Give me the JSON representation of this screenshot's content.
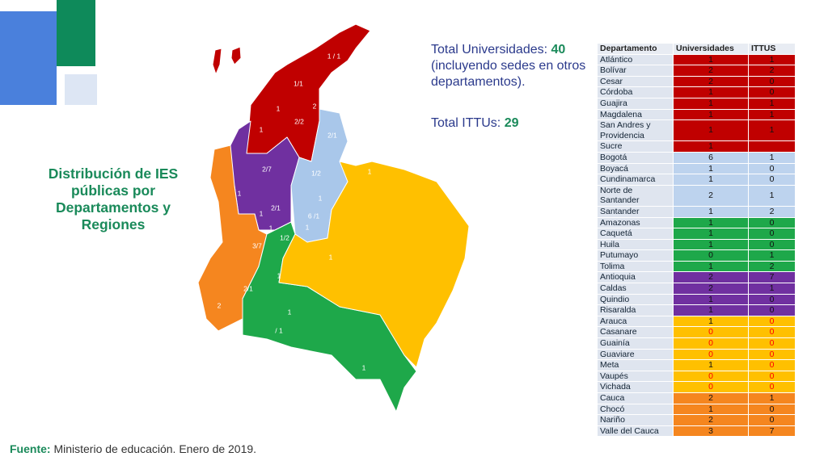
{
  "title": "Distribución de IES públicas por Departamentos y Regiones",
  "totals": {
    "universities_label": "Total Universidades:",
    "universities_value": 40,
    "universities_note": "(incluyendo sedes en otros departamentos).",
    "ittus_label": "Total ITTUs:",
    "ittus_value": 29
  },
  "map": {
    "labels": [
      "1 / 1",
      "1/1",
      "1",
      "2",
      "2/2",
      "1",
      "2/1",
      "2/7",
      "1/2",
      "1",
      "1",
      "1",
      "2/1",
      "1",
      "6 /1",
      "1",
      "1",
      "1/2",
      "3/7",
      "1",
      "1",
      "2/1",
      "2",
      "1",
      "/ 1",
      "1"
    ]
  },
  "table": {
    "header": [
      "Departamento",
      "Universidades",
      "ITTUS"
    ],
    "groups": [
      {
        "color": "#c00000",
        "rows": [
          [
            "Atlántico",
            1,
            1
          ],
          [
            "Bolívar",
            2,
            2
          ],
          [
            "Cesar",
            2,
            0
          ],
          [
            "Córdoba",
            1,
            0
          ],
          [
            "Guajira",
            1,
            1
          ],
          [
            "Magdalena",
            1,
            1
          ],
          [
            "San Andres y Providencia",
            1,
            1
          ],
          [
            "Sucre",
            1,
            null
          ]
        ]
      },
      {
        "color": "#bdd3ee",
        "rows": [
          [
            "Bogotá",
            6,
            1
          ],
          [
            "Boyacá",
            1,
            0
          ],
          [
            "Cundinamarca",
            1,
            0
          ],
          [
            "Norte de Santander",
            2,
            1
          ],
          [
            "Santander",
            1,
            2
          ]
        ]
      },
      {
        "color": "#1ea84a",
        "rows": [
          [
            "Amazonas",
            1,
            0
          ],
          [
            "Caquetá",
            1,
            0
          ],
          [
            "Huila",
            1,
            0
          ],
          [
            "Putumayo",
            0,
            1
          ],
          [
            "Tolima",
            1,
            2
          ]
        ]
      },
      {
        "color": "#7030a0",
        "rows": [
          [
            "Antioquia",
            2,
            7
          ],
          [
            "Caldas",
            2,
            1
          ],
          [
            "Quindio",
            1,
            0
          ],
          [
            "Risaralda",
            1,
            0
          ]
        ]
      },
      {
        "color": "#ffc000",
        "zero_color": "#ff0000",
        "rows": [
          [
            "Arauca",
            1,
            0
          ],
          [
            "Casanare",
            0,
            0
          ],
          [
            "Guainía",
            0,
            0
          ],
          [
            "Guaviare",
            0,
            0
          ],
          [
            "Meta",
            1,
            0
          ],
          [
            "Vaupés",
            0,
            0
          ],
          [
            "Vichada",
            0,
            0
          ]
        ]
      },
      {
        "color": "#f5861f",
        "rows": [
          [
            "Cauca",
            2,
            1
          ],
          [
            "Chocó",
            1,
            0
          ],
          [
            "Nariño",
            2,
            0
          ],
          [
            "Valle del Cauca",
            3,
            7
          ]
        ]
      }
    ]
  },
  "footer": {
    "label": "Fuente:",
    "text": "Ministerio de educación. Enero de 2019."
  }
}
